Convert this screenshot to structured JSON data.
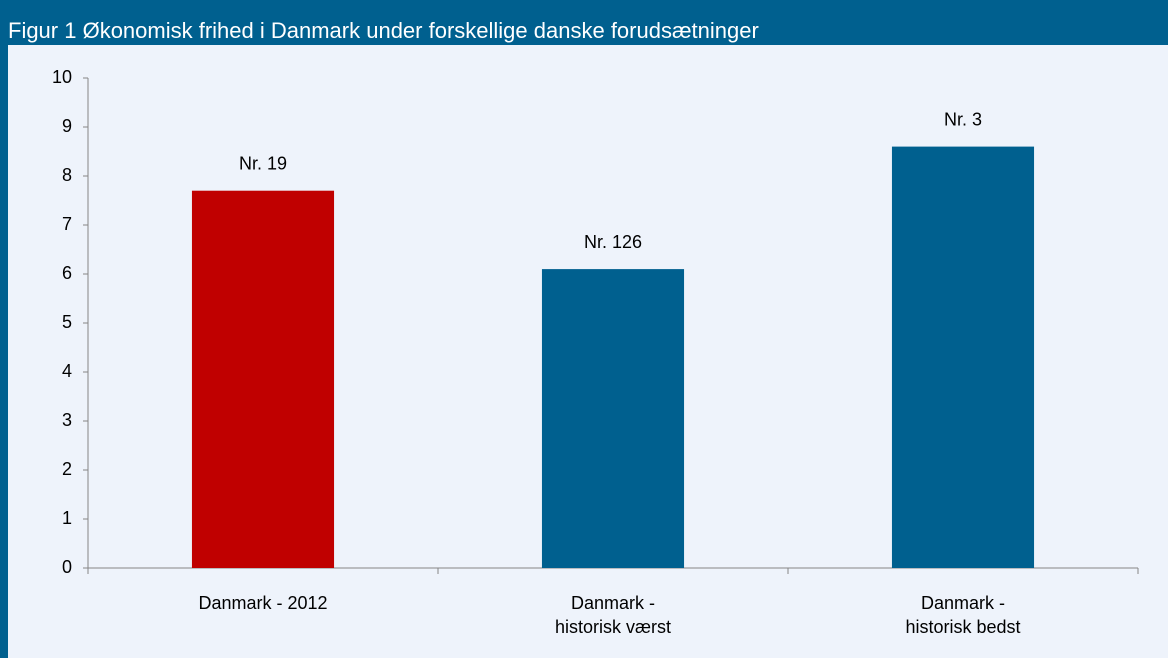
{
  "chart_data": {
    "type": "bar",
    "title": "Figur 1 Økonomisk frihed i Danmark under forskellige danske forudsætninger",
    "categories": [
      [
        "Danmark - 2012"
      ],
      [
        "Danmark -",
        "historisk værst"
      ],
      [
        "Danmark -",
        "historisk bedst"
      ]
    ],
    "values": [
      7.7,
      6.1,
      8.6
    ],
    "bar_labels": [
      "Nr. 19",
      "Nr. 126",
      "Nr. 3"
    ],
    "colors": [
      "#c00000",
      "#00608f",
      "#00608f"
    ],
    "ylim": [
      0,
      10
    ],
    "yticks": [
      0,
      1,
      2,
      3,
      4,
      5,
      6,
      7,
      8,
      9,
      10
    ],
    "grid": false
  }
}
